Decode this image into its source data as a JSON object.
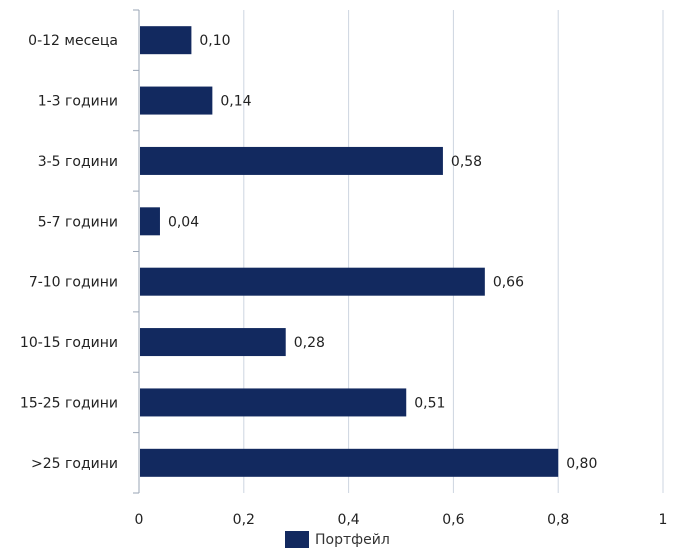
{
  "chart_data": {
    "type": "bar",
    "orientation": "horizontal",
    "categories": [
      "0-12 месеца",
      "1-3 години",
      "3-5 години",
      "5-7 години",
      "7-10 години",
      "10-15 години",
      "15-25 години",
      ">25 години"
    ],
    "series": [
      {
        "name": "Портфейл",
        "values": [
          0.1,
          0.14,
          0.58,
          0.04,
          0.66,
          0.28,
          0.51,
          0.8
        ],
        "data_labels": [
          "0,10",
          "0,14",
          "0,58",
          "0,04",
          "0,66",
          "0,28",
          "0,51",
          "0,80"
        ],
        "color": "#12295f"
      }
    ],
    "x_ticks": [
      0,
      0.2,
      0.4,
      0.6,
      0.8,
      1
    ],
    "x_tick_labels": [
      "0",
      "0,2",
      "0,4",
      "0,6",
      "0,8",
      "1"
    ],
    "xlim": [
      0,
      1
    ],
    "grid": "vertical",
    "legend_position": "bottom-center",
    "title": "",
    "xlabel": "",
    "ylabel": ""
  }
}
